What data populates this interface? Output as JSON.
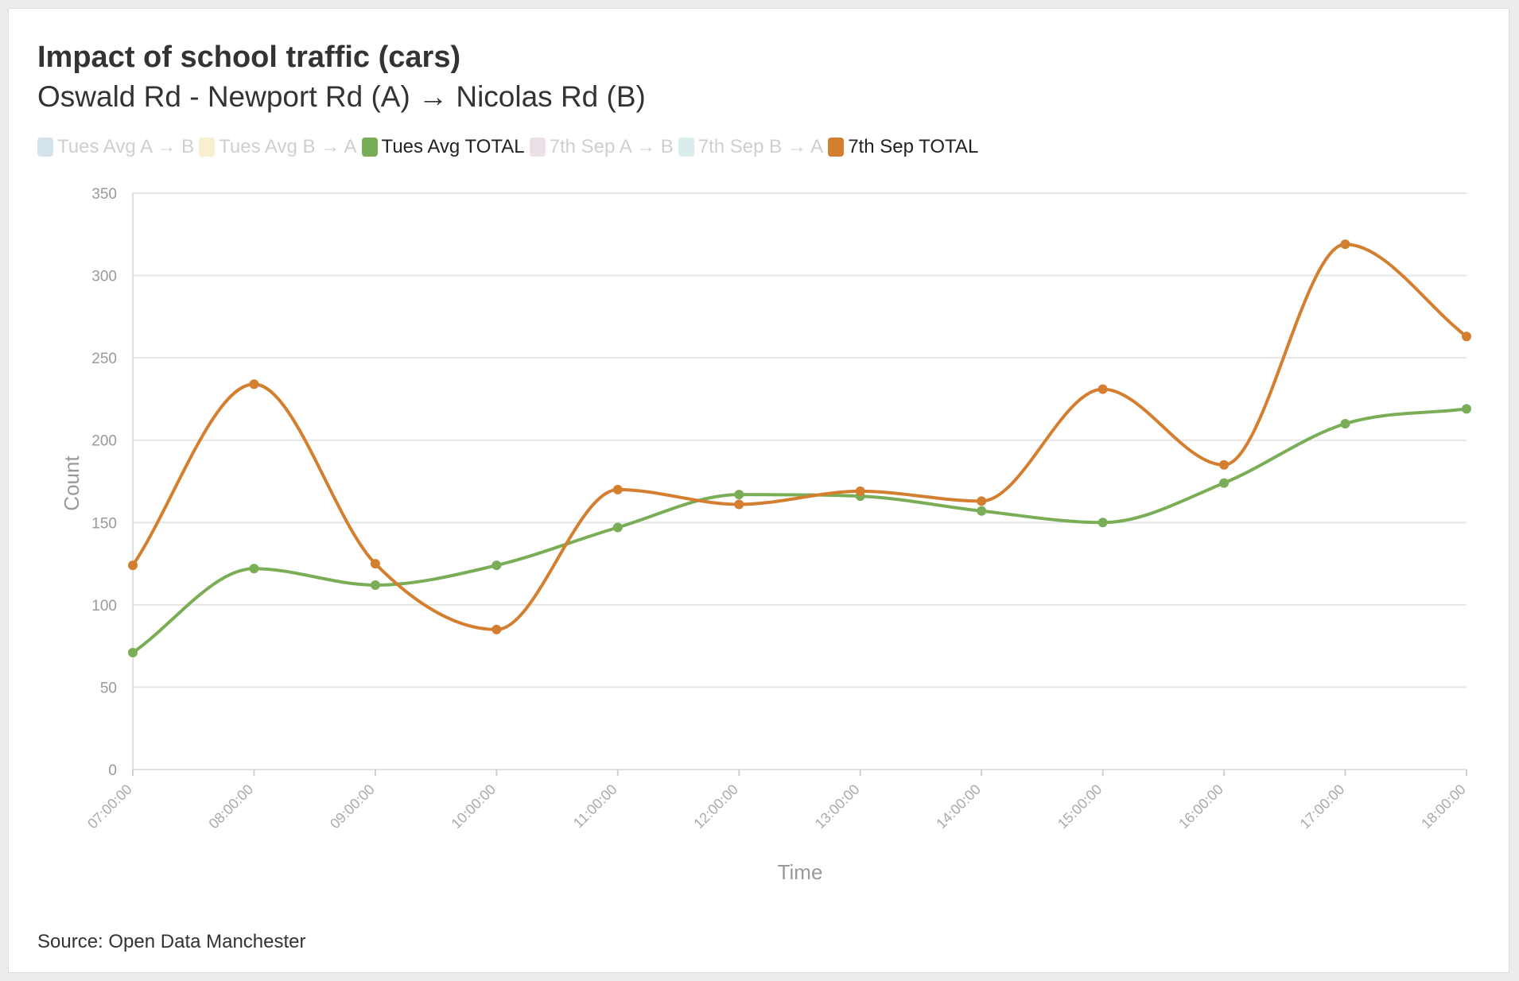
{
  "header": {
    "title": "Impact of school traffic (cars)",
    "subtitle": "Oswald Rd - Newport Rd (A) → Nicolas Rd (B)"
  },
  "legend": {
    "items": [
      {
        "label": "Tues Avg A → B",
        "color": "#b8cfe0",
        "active": false
      },
      {
        "label": "Tues Avg B → A",
        "color": "#f5e2ad",
        "active": false
      },
      {
        "label": "Tues Avg TOTAL",
        "color": "#79ae56",
        "active": true
      },
      {
        "label": "7th Sep A → B",
        "color": "#e0c9d8",
        "active": false
      },
      {
        "label": "7th Sep B → A",
        "color": "#c2e1e0",
        "active": false
      },
      {
        "label": "7th Sep TOTAL",
        "color": "#d47e2f",
        "active": true
      }
    ]
  },
  "footer": {
    "source": "Source: Open Data Manchester"
  },
  "chart_data": {
    "type": "line",
    "title": "Impact of school traffic (cars)",
    "subtitle": "Oswald Rd - Newport Rd (A) → Nicolas Rd (B)",
    "xlabel": "Time",
    "ylabel": "Count",
    "ylim": [
      0,
      350
    ],
    "yticks": [
      0,
      50,
      100,
      150,
      200,
      250,
      300,
      350
    ],
    "grid": true,
    "legend_placement": "top-left",
    "smooth": true,
    "categories": [
      "07:00:00",
      "08:00:00",
      "09:00:00",
      "10:00:00",
      "11:00:00",
      "12:00:00",
      "13:00:00",
      "14:00:00",
      "15:00:00",
      "16:00:00",
      "17:00:00",
      "18:00:00"
    ],
    "series": [
      {
        "name": "Tues Avg TOTAL",
        "color": "#79ae56",
        "values": [
          71,
          122,
          112,
          124,
          147,
          167,
          166,
          157,
          150,
          174,
          210,
          219
        ]
      },
      {
        "name": "7th Sep TOTAL",
        "color": "#d47e2f",
        "values": [
          124,
          234,
          125,
          85,
          170,
          161,
          169,
          163,
          231,
          185,
          319,
          263
        ]
      }
    ]
  }
}
